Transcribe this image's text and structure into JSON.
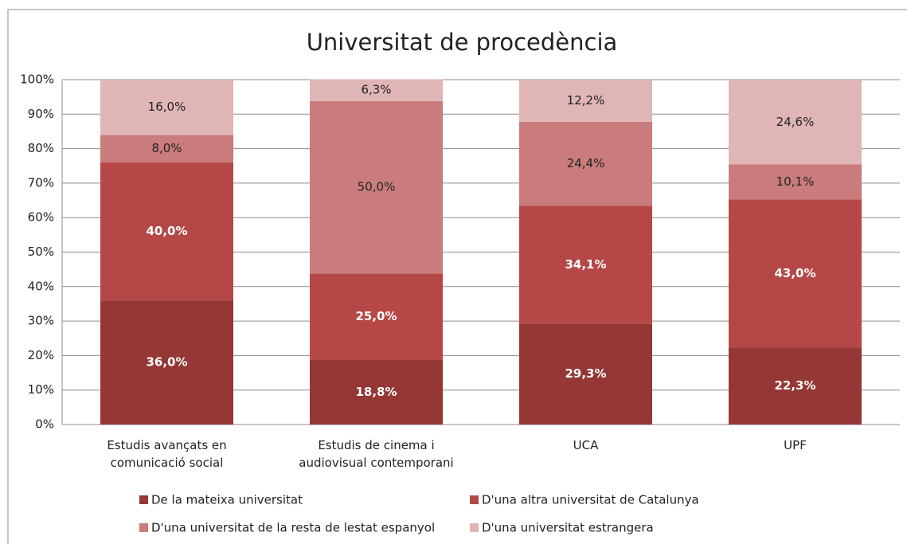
{
  "chart_data": {
    "type": "stacked_bar",
    "title": "Universitat de procedència",
    "categories": [
      "Estudis avançats en comunicació social",
      "Estudis de cinema i audiovisual contemporani",
      "UCA",
      "UPF"
    ],
    "series": [
      {
        "name": "De la mateixa universitat",
        "color": "#953735",
        "label_color": "#ffffff",
        "values": [
          36.0,
          18.8,
          29.3,
          22.3
        ],
        "value_labels": [
          "36,0%",
          "18,8%",
          "29,3%",
          "22,3%"
        ]
      },
      {
        "name": "D'una altra universitat de Catalunya",
        "color": "#b54846",
        "label_color": "#ffffff",
        "values": [
          40.0,
          25.0,
          34.1,
          43.0
        ],
        "value_labels": [
          "40,0%",
          "25,0%",
          "34,1%",
          "43,0%"
        ]
      },
      {
        "name": "D'una universitat de la resta de lestat espanyol",
        "color": "#c97c7b",
        "label_color": "#222222",
        "values": [
          8.0,
          50.0,
          24.4,
          10.1
        ],
        "value_labels": [
          "8,0%",
          "50,0%",
          "24,4%",
          "10,1%"
        ]
      },
      {
        "name": "D'una universitat estrangera",
        "color": "#e0b5b5",
        "label_color": "#222222",
        "values": [
          16.0,
          6.3,
          12.2,
          24.6
        ],
        "value_labels": [
          "16,0%",
          "6,3%",
          "12,2%",
          "24,6%"
        ]
      }
    ],
    "ylim": [
      0,
      100
    ],
    "yticks": [
      {
        "value": 0,
        "label": "0%"
      },
      {
        "value": 10,
        "label": "10%"
      },
      {
        "value": 20,
        "label": "20%"
      },
      {
        "value": 30,
        "label": "30%"
      },
      {
        "value": 40,
        "label": "40%"
      },
      {
        "value": 50,
        "label": "50%"
      },
      {
        "value": 60,
        "label": "60%"
      },
      {
        "value": 70,
        "label": "70%"
      },
      {
        "value": 80,
        "label": "80%"
      },
      {
        "value": 90,
        "label": "90%"
      },
      {
        "value": 100,
        "label": "100%"
      }
    ],
    "grid": true,
    "legend": "bottom"
  }
}
